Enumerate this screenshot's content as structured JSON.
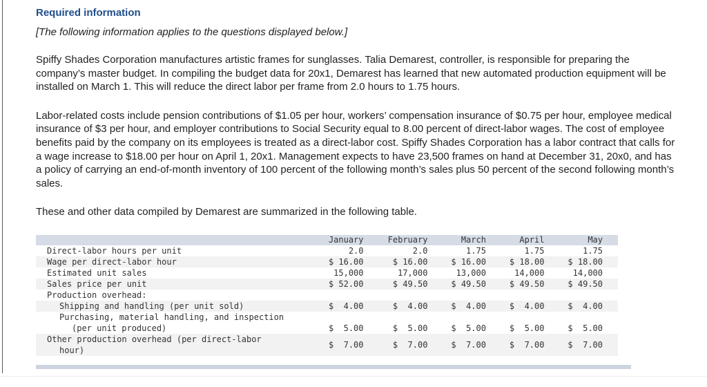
{
  "heading": "Required information",
  "intro": "[The following information applies to the questions displayed below.]",
  "paragraphs": [
    "Spiffy Shades Corporation manufactures artistic frames for sunglasses. Talia Demarest, controller, is responsible for preparing the company’s master budget. In compiling the budget data for 20x1, Demarest has learned that new automated production equipment will be installed on March 1. This will reduce the direct labor per frame from 2.0 hours to 1.75 hours.",
    "Labor-related costs include pension contributions of $1.05 per hour, workers’ compensation insurance of $0.75 per hour, employee medical insurance of $3 per hour, and employer contributions to Social Security equal to 8.00 percent of direct-labor wages. The cost of employee benefits paid by the company on its employees is treated as a direct-labor cost. Spiffy Shades Corporation has a labor contract that calls for a wage increase to $18.00 per hour on April 1, 20x1. Management expects to have 23,500 frames on hand at December 31, 20x0, and has a policy of carrying an end-of-month inventory of 100 percent of the following month’s sales plus 50 percent of the second following month’s sales.",
    "These and other data compiled by Demarest are summarized in the following table."
  ],
  "table": {
    "columns": [
      "January",
      "February",
      "March",
      "April",
      "May"
    ],
    "rows": [
      {
        "label": "Direct-labor hours per unit",
        "values": [
          "2.0",
          "2.0",
          "1.75",
          "1.75",
          "1.75"
        ]
      },
      {
        "label": "Wage per direct-labor hour",
        "values": [
          "$ 16.00",
          "$ 16.00",
          "$ 16.00",
          "$ 18.00",
          "$ 18.00"
        ]
      },
      {
        "label": "Estimated unit sales",
        "values": [
          "15,000",
          "17,000",
          "13,000",
          "14,000",
          "14,000"
        ]
      },
      {
        "label": "Sales price per unit",
        "values": [
          "$ 52.00",
          "$ 49.50",
          "$ 49.50",
          "$ 49.50",
          "$ 49.50"
        ]
      },
      {
        "label": "Production overhead:",
        "values": [
          "",
          "",
          "",
          "",
          ""
        ]
      },
      {
        "label": "Shipping and handling (per unit sold)",
        "values": [
          "$  4.00",
          "$  4.00",
          "$  4.00",
          "$  4.00",
          "$  4.00"
        ]
      },
      {
        "label": "Purchasing, material handling, and inspection",
        "label2": "(per unit produced)",
        "values": [
          "$  5.00",
          "$  5.00",
          "$  5.00",
          "$  5.00",
          "$  5.00"
        ]
      },
      {
        "label": "Other production overhead (per direct-labor",
        "label2": "hour)",
        "values": [
          "$  7.00",
          "$  7.00",
          "$  7.00",
          "$  7.00",
          "$  7.00"
        ]
      }
    ]
  }
}
